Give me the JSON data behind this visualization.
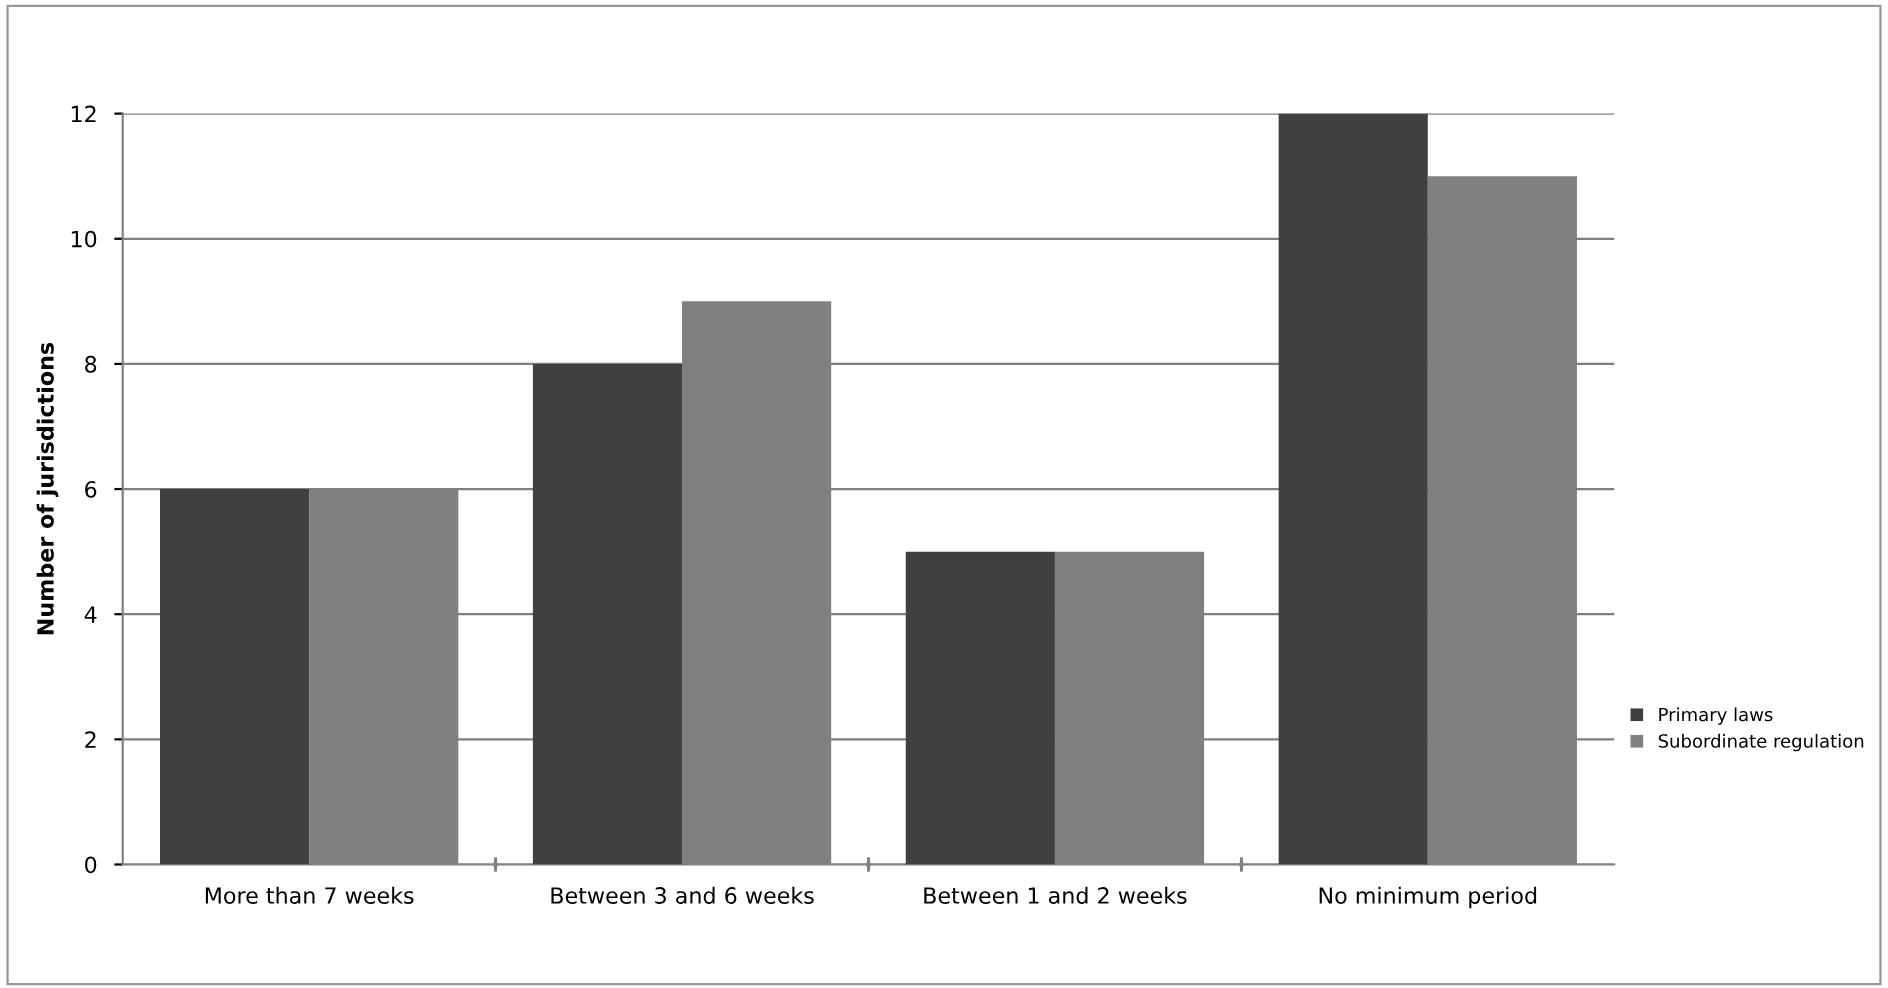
{
  "chart_data": {
    "type": "bar",
    "ylabel": "Number of jurisdictions",
    "categories": [
      "More than 7 weeks",
      "Between 3 and 6 weeks",
      "Between 1 and 2 weeks",
      "No minimum period"
    ],
    "series": [
      {
        "name": "Primary laws",
        "color": "#404040",
        "values": [
          6,
          8,
          5,
          12
        ]
      },
      {
        "name": "Subordinate regulation",
        "color": "#808080",
        "values": [
          6,
          9,
          5,
          11
        ]
      }
    ],
    "ylim": [
      0,
      12
    ],
    "yticks": [
      0,
      2,
      4,
      6,
      8,
      10,
      12
    ],
    "grid": "y",
    "legend": "right"
  }
}
